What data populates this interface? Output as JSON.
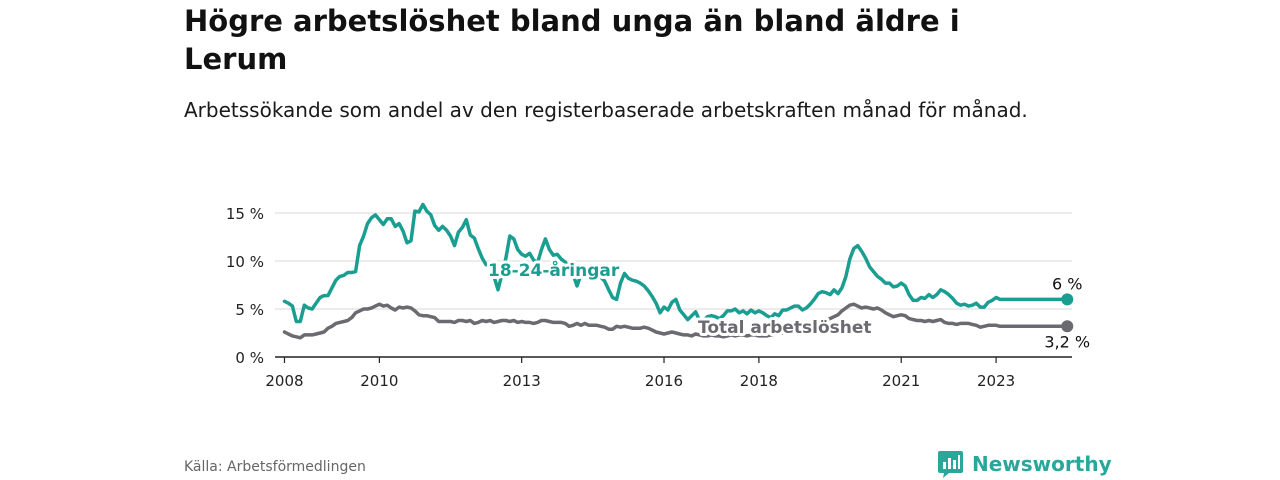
{
  "title": "Högre arbetslöshet bland unga än bland äldre i Lerum",
  "subtitle": "Arbetssökande som andel av den registerbaserade arbetskraften månad för månad.",
  "source": "Källa: Arbetsförmedlingen",
  "brand": {
    "name": "Newsworthy",
    "logo_icon": "newsworthy-logo-icon",
    "color": "#2aa79b"
  },
  "chart_data": {
    "type": "line",
    "x_start": 2008.0,
    "x_step_months": 1,
    "xlim": [
      2007.8,
      2024.6
    ],
    "ylim": [
      0,
      15
    ],
    "yticks": [
      0,
      5,
      10,
      15
    ],
    "ytick_labels": [
      "0 %",
      "5 %",
      "10 %",
      "15 %"
    ],
    "xticks": [
      2008,
      2010,
      2013,
      2016,
      2018,
      2021,
      2023
    ],
    "xtick_labels": [
      "2008",
      "2010",
      "2013",
      "2016",
      "2018",
      "2021",
      "2023"
    ],
    "grid": true,
    "series": [
      {
        "name": "18-24-åringar",
        "color": "#1a9e92",
        "end_label": "6 %",
        "values": [
          5.8,
          5.6,
          5.3,
          3.7,
          3.7,
          5.4,
          5.1,
          5.0,
          5.6,
          6.2,
          6.4,
          6.4,
          7.2,
          8.0,
          8.4,
          8.5,
          8.8,
          8.8,
          8.9,
          11.6,
          12.6,
          13.9,
          14.5,
          14.8,
          14.3,
          13.8,
          14.4,
          14.4,
          13.6,
          13.9,
          13.1,
          11.9,
          12.1,
          15.2,
          15.1,
          15.9,
          15.2,
          14.8,
          13.7,
          13.2,
          13.6,
          13.2,
          12.6,
          11.6,
          13.0,
          13.5,
          14.3,
          12.7,
          12.4,
          11.3,
          10.3,
          9.6,
          9.6,
          8.4,
          7.0,
          8.6,
          10.3,
          12.6,
          12.3,
          11.2,
          10.7,
          10.5,
          10.8,
          10.1,
          9.8,
          11.2,
          12.3,
          11.2,
          10.6,
          10.7,
          10.2,
          9.9,
          9.2,
          8.6,
          7.4,
          8.6,
          9.2,
          9.0,
          8.6,
          8.5,
          8.3,
          7.9,
          7.0,
          6.2,
          6.0,
          7.7,
          8.7,
          8.2,
          8.0,
          7.9,
          7.7,
          7.4,
          6.9,
          6.3,
          5.6,
          4.6,
          5.2,
          4.9,
          5.7,
          6.0,
          4.9,
          4.4,
          3.9,
          4.3,
          4.7,
          3.8,
          3.8,
          4.2,
          4.3,
          4.2,
          4.0,
          4.3,
          4.8,
          4.8,
          5.0,
          4.6,
          4.8,
          4.5,
          4.9,
          4.6,
          4.8,
          4.6,
          4.3,
          4.1,
          4.5,
          4.3,
          4.9,
          4.9,
          5.1,
          5.3,
          5.3,
          4.9,
          5.1,
          5.5,
          6.0,
          6.6,
          6.8,
          6.7,
          6.5,
          7.0,
          6.6,
          7.2,
          8.4,
          10.2,
          11.3,
          11.6,
          11.0,
          10.3,
          9.4,
          8.9,
          8.4,
          8.1,
          7.7,
          7.7,
          7.3,
          7.4,
          7.7,
          7.4,
          6.5,
          5.9,
          5.9,
          6.2,
          6.1,
          6.5,
          6.2,
          6.5,
          7.0,
          6.8,
          6.5,
          6.1,
          5.6,
          5.4,
          5.5,
          5.3,
          5.4,
          5.6,
          5.2,
          5.2,
          5.7,
          5.9,
          6.2,
          6.0,
          6.0,
          6.0,
          6.0,
          6.0,
          6.0,
          6.0,
          6.0,
          6.0,
          6.0,
          6.0,
          6.0,
          6.0,
          6.0,
          6.0,
          6.0,
          6.0,
          6.0
        ]
      },
      {
        "name": "Total arbetslöshet",
        "color": "#6b6a70",
        "end_label": "3,2 %",
        "values": [
          2.6,
          2.4,
          2.2,
          2.1,
          2.0,
          2.3,
          2.3,
          2.3,
          2.4,
          2.5,
          2.6,
          3.0,
          3.2,
          3.5,
          3.6,
          3.7,
          3.8,
          4.1,
          4.6,
          4.8,
          5.0,
          5.0,
          5.1,
          5.3,
          5.5,
          5.3,
          5.4,
          5.1,
          4.9,
          5.2,
          5.1,
          5.2,
          5.1,
          4.8,
          4.4,
          4.3,
          4.3,
          4.2,
          4.1,
          3.7,
          3.7,
          3.7,
          3.7,
          3.6,
          3.8,
          3.8,
          3.7,
          3.8,
          3.5,
          3.6,
          3.8,
          3.7,
          3.8,
          3.6,
          3.7,
          3.8,
          3.8,
          3.7,
          3.8,
          3.6,
          3.7,
          3.6,
          3.6,
          3.5,
          3.6,
          3.8,
          3.8,
          3.7,
          3.6,
          3.6,
          3.6,
          3.5,
          3.2,
          3.3,
          3.5,
          3.3,
          3.5,
          3.3,
          3.3,
          3.3,
          3.2,
          3.1,
          2.9,
          2.9,
          3.2,
          3.1,
          3.2,
          3.1,
          3.0,
          3.0,
          3.0,
          3.1,
          3.0,
          2.8,
          2.6,
          2.5,
          2.4,
          2.5,
          2.6,
          2.5,
          2.4,
          2.3,
          2.3,
          2.2,
          2.4,
          2.3,
          2.2,
          2.2,
          2.3,
          2.2,
          2.2,
          2.1,
          2.2,
          2.3,
          2.2,
          2.3,
          2.3,
          2.2,
          2.3,
          2.3,
          2.2,
          2.2,
          2.2,
          2.3,
          2.4,
          2.5,
          2.5,
          2.7,
          2.8,
          2.9,
          3.1,
          3.2,
          3.4,
          3.6,
          3.7,
          3.8,
          3.8,
          3.9,
          4.0,
          4.2,
          4.4,
          4.8,
          5.1,
          5.4,
          5.5,
          5.3,
          5.1,
          5.2,
          5.1,
          5.0,
          5.1,
          4.9,
          4.6,
          4.4,
          4.2,
          4.3,
          4.4,
          4.3,
          4.0,
          3.9,
          3.8,
          3.8,
          3.7,
          3.8,
          3.7,
          3.8,
          3.9,
          3.6,
          3.5,
          3.5,
          3.4,
          3.5,
          3.5,
          3.5,
          3.4,
          3.3,
          3.1,
          3.2,
          3.3,
          3.3,
          3.3,
          3.2,
          3.2,
          3.2,
          3.2,
          3.2,
          3.2,
          3.2,
          3.2,
          3.2,
          3.2,
          3.2,
          3.2,
          3.2,
          3.2,
          3.2,
          3.2,
          3.2,
          3.2
        ]
      }
    ]
  }
}
